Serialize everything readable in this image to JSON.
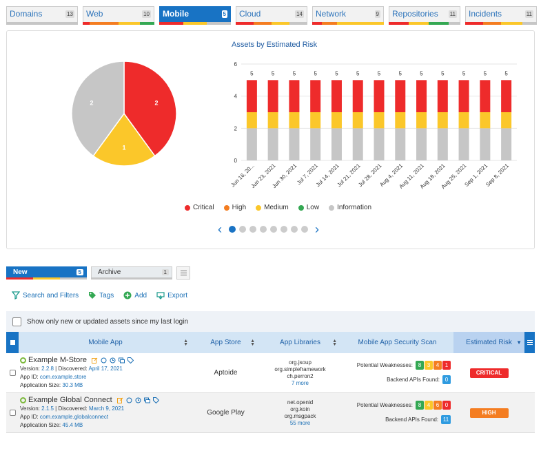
{
  "colors": {
    "critical": "#ee2b2b",
    "high": "#f47d21",
    "medium": "#fbc72a",
    "low": "#34a853",
    "information": "#c6c6c6",
    "accent": "#1873c4"
  },
  "top_tabs": [
    {
      "label": "Domains",
      "count": "13"
    },
    {
      "label": "Web",
      "count": "10"
    },
    {
      "label": "Mobile",
      "count": "5",
      "active": true
    },
    {
      "label": "Cloud",
      "count": "14"
    },
    {
      "label": "Network",
      "count": "9"
    },
    {
      "label": "Repositories",
      "count": "11"
    },
    {
      "label": "Incidents",
      "count": "11"
    }
  ],
  "chart_data": {
    "title": "Assets by Estimated Risk",
    "pie": {
      "type": "pie",
      "slices": [
        {
          "name": "Critical",
          "value": 2
        },
        {
          "name": "Medium",
          "value": 1
        },
        {
          "name": "Information",
          "value": 2
        }
      ]
    },
    "bar": {
      "type": "bar",
      "stacked": true,
      "categories": [
        "Jun 16, 20...",
        "Jun 23, 2021",
        "Jun 30, 2021",
        "Jul 7, 2021",
        "Jul 14, 2021",
        "Jul 21, 2021",
        "Jul 28, 2021",
        "Aug 4, 2021",
        "Aug 11, 2021",
        "Aug 18, 2021",
        "Aug 25, 2021",
        "Sep 1, 2021",
        "Sep 8, 2021"
      ],
      "series": [
        {
          "name": "Information",
          "values": [
            2,
            2,
            2,
            2,
            2,
            2,
            2,
            2,
            2,
            2,
            2,
            2,
            2
          ]
        },
        {
          "name": "Medium",
          "values": [
            1,
            1,
            1,
            1,
            1,
            1,
            1,
            1,
            1,
            1,
            1,
            1,
            1
          ]
        },
        {
          "name": "Critical",
          "values": [
            2,
            2,
            2,
            2,
            2,
            2,
            2,
            2,
            2,
            2,
            2,
            2,
            2
          ]
        }
      ],
      "totals": [
        "5",
        "5",
        "5",
        "5",
        "5",
        "5",
        "5",
        "5",
        "5",
        "5",
        "5",
        "5",
        "5"
      ],
      "ylim": [
        0,
        6
      ],
      "yticks": [
        "0",
        "2",
        "4",
        "6"
      ]
    },
    "legend": [
      "Critical",
      "High",
      "Medium",
      "Low",
      "Information"
    ]
  },
  "pager": {
    "pages": 8,
    "active": 0
  },
  "sub_tabs": [
    {
      "label": "New",
      "count": "5"
    },
    {
      "label": "Archive",
      "count": "1"
    }
  ],
  "toolbar": {
    "search": "Search and Filters",
    "tags": "Tags",
    "add": "Add",
    "export": "Export"
  },
  "filter": {
    "label": "Show only new or updated assets since my last login"
  },
  "table": {
    "headers": {
      "app": "Mobile App",
      "store": "App Store",
      "libs": "App Libraries",
      "scan": "Mobile App Security Scan",
      "risk": "Estimated Risk"
    },
    "rows": [
      {
        "name": "Example M-Store",
        "version_label": "Version:",
        "version": "2.2.8",
        "sep": "|",
        "discovered_label": "Discovered:",
        "discovered": "April 17, 2021",
        "appid_label": "App ID:",
        "appid": "com.example.store",
        "size_label": "Application Size:",
        "size": "30.3 MB",
        "store": "Aptoide",
        "libs": [
          "org.jsoup",
          "org.simpleframework",
          "ch.perron2"
        ],
        "libs_more": "7 more",
        "weak_label": "Potential Weaknesses:",
        "weak": [
          "8",
          "3",
          "4",
          "1"
        ],
        "apis_label": "Backend APIs Found:",
        "apis": "0",
        "risk": "CRITICAL",
        "risk_color": "#ee2b2b"
      },
      {
        "name": "Example Global Connect",
        "version_label": "Version:",
        "version": "2.1.5",
        "sep": "|",
        "discovered_label": "Discovered:",
        "discovered": "March 9, 2021",
        "appid_label": "App ID:",
        "appid": "com.example.globalconnect",
        "size_label": "Application Size:",
        "size": "45.4 MB",
        "store": "Google Play",
        "libs": [
          "net.openid",
          "org.koin",
          "org.msgpack"
        ],
        "libs_more": "55 more",
        "weak_label": "Potential Weaknesses:",
        "weak": [
          "8",
          "4",
          "6",
          "0"
        ],
        "apis_label": "Backend APIs Found:",
        "apis": "11",
        "risk": "HIGH",
        "risk_color": "#f47d21"
      }
    ]
  }
}
